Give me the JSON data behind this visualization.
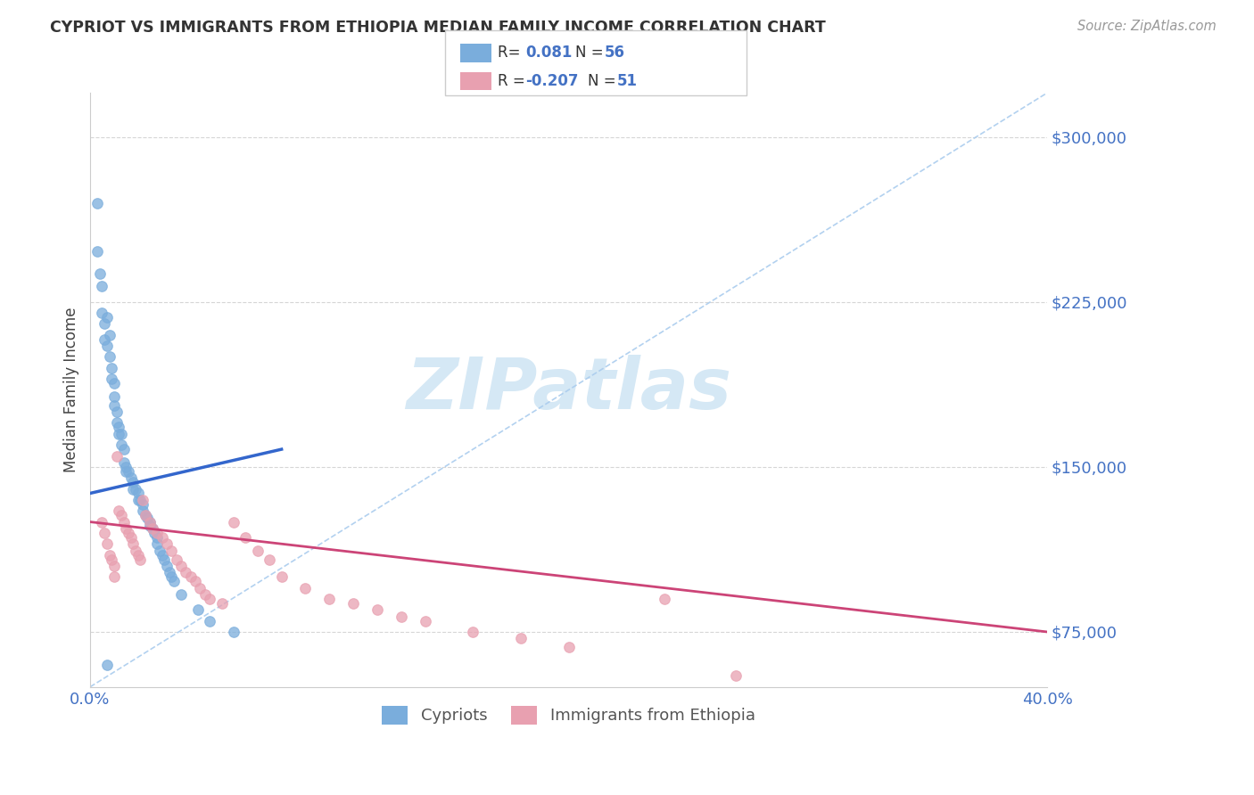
{
  "title": "CYPRIOT VS IMMIGRANTS FROM ETHIOPIA MEDIAN FAMILY INCOME CORRELATION CHART",
  "source_text": "Source: ZipAtlas.com",
  "ylabel": "Median Family Income",
  "xlim": [
    0.0,
    0.4
  ],
  "ylim": [
    50000,
    320000
  ],
  "yticks": [
    75000,
    150000,
    225000,
    300000
  ],
  "ytick_labels": [
    "$75,000",
    "$150,000",
    "$225,000",
    "$300,000"
  ],
  "xticks": [
    0.0,
    0.05,
    0.1,
    0.15,
    0.2,
    0.25,
    0.3,
    0.35,
    0.4
  ],
  "blue_color": "#7aaddc",
  "pink_color": "#e8a0b0",
  "blue_line_color": "#3366cc",
  "pink_line_color": "#cc4477",
  "diag_color": "#aaccee",
  "axis_color": "#4472c4",
  "grid_color": "#cccccc",
  "watermark_color": "#d5e8f5",
  "blue_scatter_x": [
    0.003,
    0.003,
    0.004,
    0.005,
    0.005,
    0.006,
    0.006,
    0.007,
    0.007,
    0.008,
    0.008,
    0.009,
    0.009,
    0.01,
    0.01,
    0.01,
    0.011,
    0.011,
    0.012,
    0.012,
    0.013,
    0.013,
    0.014,
    0.014,
    0.015,
    0.015,
    0.016,
    0.017,
    0.018,
    0.018,
    0.019,
    0.02,
    0.02,
    0.021,
    0.022,
    0.022,
    0.023,
    0.024,
    0.025,
    0.025,
    0.026,
    0.027,
    0.028,
    0.028,
    0.029,
    0.03,
    0.031,
    0.032,
    0.033,
    0.034,
    0.035,
    0.038,
    0.045,
    0.05,
    0.06,
    0.007
  ],
  "blue_scatter_y": [
    270000,
    248000,
    238000,
    232000,
    220000,
    215000,
    208000,
    205000,
    218000,
    210000,
    200000,
    195000,
    190000,
    188000,
    182000,
    178000,
    175000,
    170000,
    168000,
    165000,
    165000,
    160000,
    158000,
    152000,
    150000,
    148000,
    148000,
    145000,
    143000,
    140000,
    140000,
    138000,
    135000,
    135000,
    133000,
    130000,
    128000,
    127000,
    125000,
    123000,
    122000,
    120000,
    118000,
    115000,
    112000,
    110000,
    108000,
    105000,
    102000,
    100000,
    98000,
    92000,
    85000,
    80000,
    75000,
    60000
  ],
  "pink_scatter_x": [
    0.005,
    0.006,
    0.007,
    0.008,
    0.009,
    0.01,
    0.01,
    0.011,
    0.012,
    0.013,
    0.014,
    0.015,
    0.016,
    0.017,
    0.018,
    0.019,
    0.02,
    0.021,
    0.022,
    0.023,
    0.025,
    0.026,
    0.028,
    0.03,
    0.032,
    0.034,
    0.036,
    0.038,
    0.04,
    0.042,
    0.044,
    0.046,
    0.048,
    0.05,
    0.055,
    0.06,
    0.065,
    0.07,
    0.075,
    0.08,
    0.09,
    0.1,
    0.11,
    0.12,
    0.13,
    0.14,
    0.16,
    0.18,
    0.2,
    0.24,
    0.27
  ],
  "pink_scatter_y": [
    125000,
    120000,
    115000,
    110000,
    108000,
    105000,
    100000,
    155000,
    130000,
    128000,
    125000,
    122000,
    120000,
    118000,
    115000,
    112000,
    110000,
    108000,
    135000,
    128000,
    125000,
    122000,
    120000,
    118000,
    115000,
    112000,
    108000,
    105000,
    102000,
    100000,
    98000,
    95000,
    92000,
    90000,
    88000,
    125000,
    118000,
    112000,
    108000,
    100000,
    95000,
    90000,
    88000,
    85000,
    82000,
    80000,
    75000,
    72000,
    68000,
    90000,
    55000
  ],
  "blue_trend_x": [
    0.0,
    0.08
  ],
  "blue_trend_y": [
    138000,
    158000
  ],
  "pink_trend_x": [
    0.0,
    0.4
  ],
  "pink_trend_y": [
    125000,
    75000
  ]
}
